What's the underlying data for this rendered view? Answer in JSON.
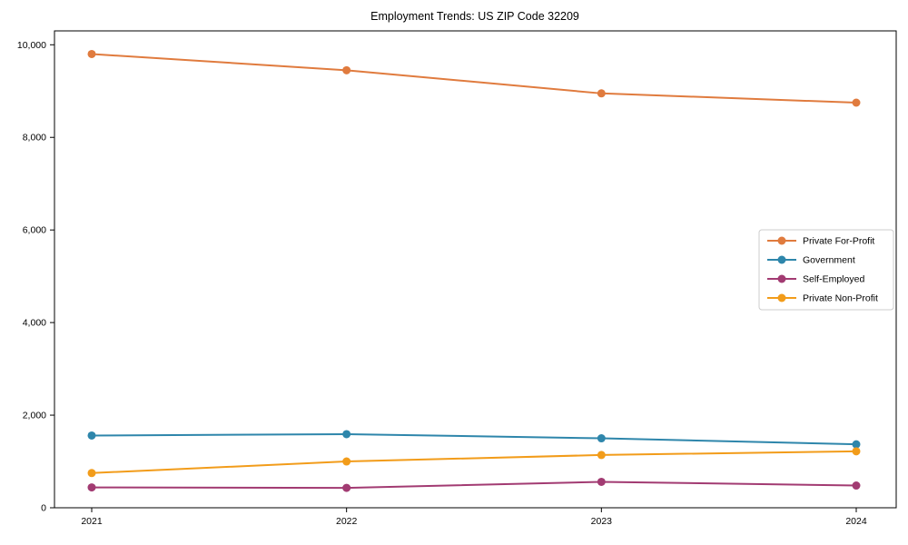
{
  "figure": {
    "background": "#ffffff",
    "axis_color": "#000000",
    "legend_border_color": "#cccccc"
  },
  "chart_data": {
    "type": "line",
    "title": "Employment Trends: US ZIP Code 32209",
    "xlabel": "",
    "ylabel": "",
    "x": [
      2021,
      2022,
      2023,
      2024
    ],
    "x_tick_labels": [
      "2021",
      "2022",
      "2023",
      "2024"
    ],
    "y_ticks": [
      0,
      2000,
      4000,
      6000,
      8000,
      10000
    ],
    "y_tick_labels": [
      "0",
      "2,000",
      "4,000",
      "6,000",
      "8,000",
      "10,000"
    ],
    "ylim": [
      0,
      10300
    ],
    "grid": false,
    "frame": true,
    "marker": "circle",
    "legend_position": "center-right",
    "series": [
      {
        "name": "Private For-Profit",
        "color": "#E07B3E",
        "values": [
          9800,
          9450,
          8950,
          8750
        ]
      },
      {
        "name": "Government",
        "color": "#2E86AB",
        "values": [
          1560,
          1590,
          1500,
          1370
        ]
      },
      {
        "name": "Self-Employed",
        "color": "#A23B72",
        "values": [
          440,
          430,
          560,
          480
        ]
      },
      {
        "name": "Private Non-Profit",
        "color": "#F29C1A",
        "values": [
          750,
          1000,
          1140,
          1220
        ]
      }
    ]
  }
}
